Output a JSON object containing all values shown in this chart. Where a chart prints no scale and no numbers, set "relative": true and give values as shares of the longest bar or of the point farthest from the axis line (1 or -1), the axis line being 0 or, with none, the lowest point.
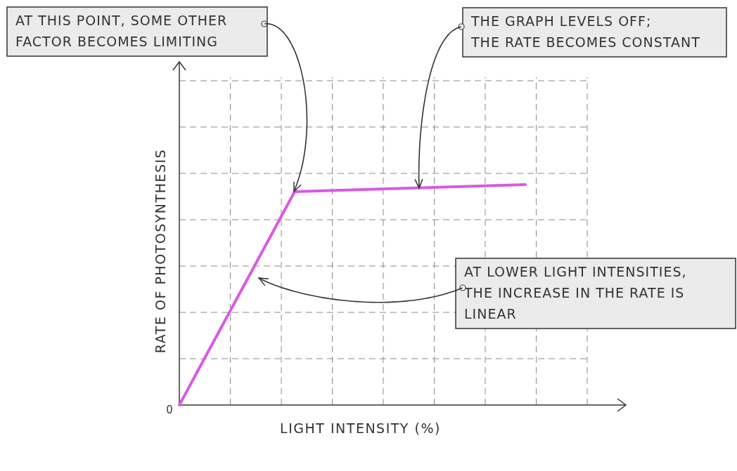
{
  "chart_data": {
    "type": "line",
    "relative": true,
    "xlabel": "LIGHT INTENSITY (%)",
    "ylabel": "RATE OF PHOTOSYNTHESIS",
    "categories": [
      null,
      null,
      null,
      null
    ],
    "series": [
      {
        "color": "#d75ae3",
        "values": [
          0,
          0.968,
          0.984,
          1
        ]
      }
    ],
    "grid": true,
    "marker": "none",
    "line_style": "solid",
    "annotations": [
      "AT THIS POINT, SOME OTHER\nFACTOR BECOMES LIMITING",
      "THE GRAPH LEVELS OFF;\nTHE RATE BECOMES CONSTANT",
      "AT LOWER LIGHT INTENSITIES,\nTHE INCREASE IN THE RATE IS\nLINEAR",
      "0"
    ]
  }
}
